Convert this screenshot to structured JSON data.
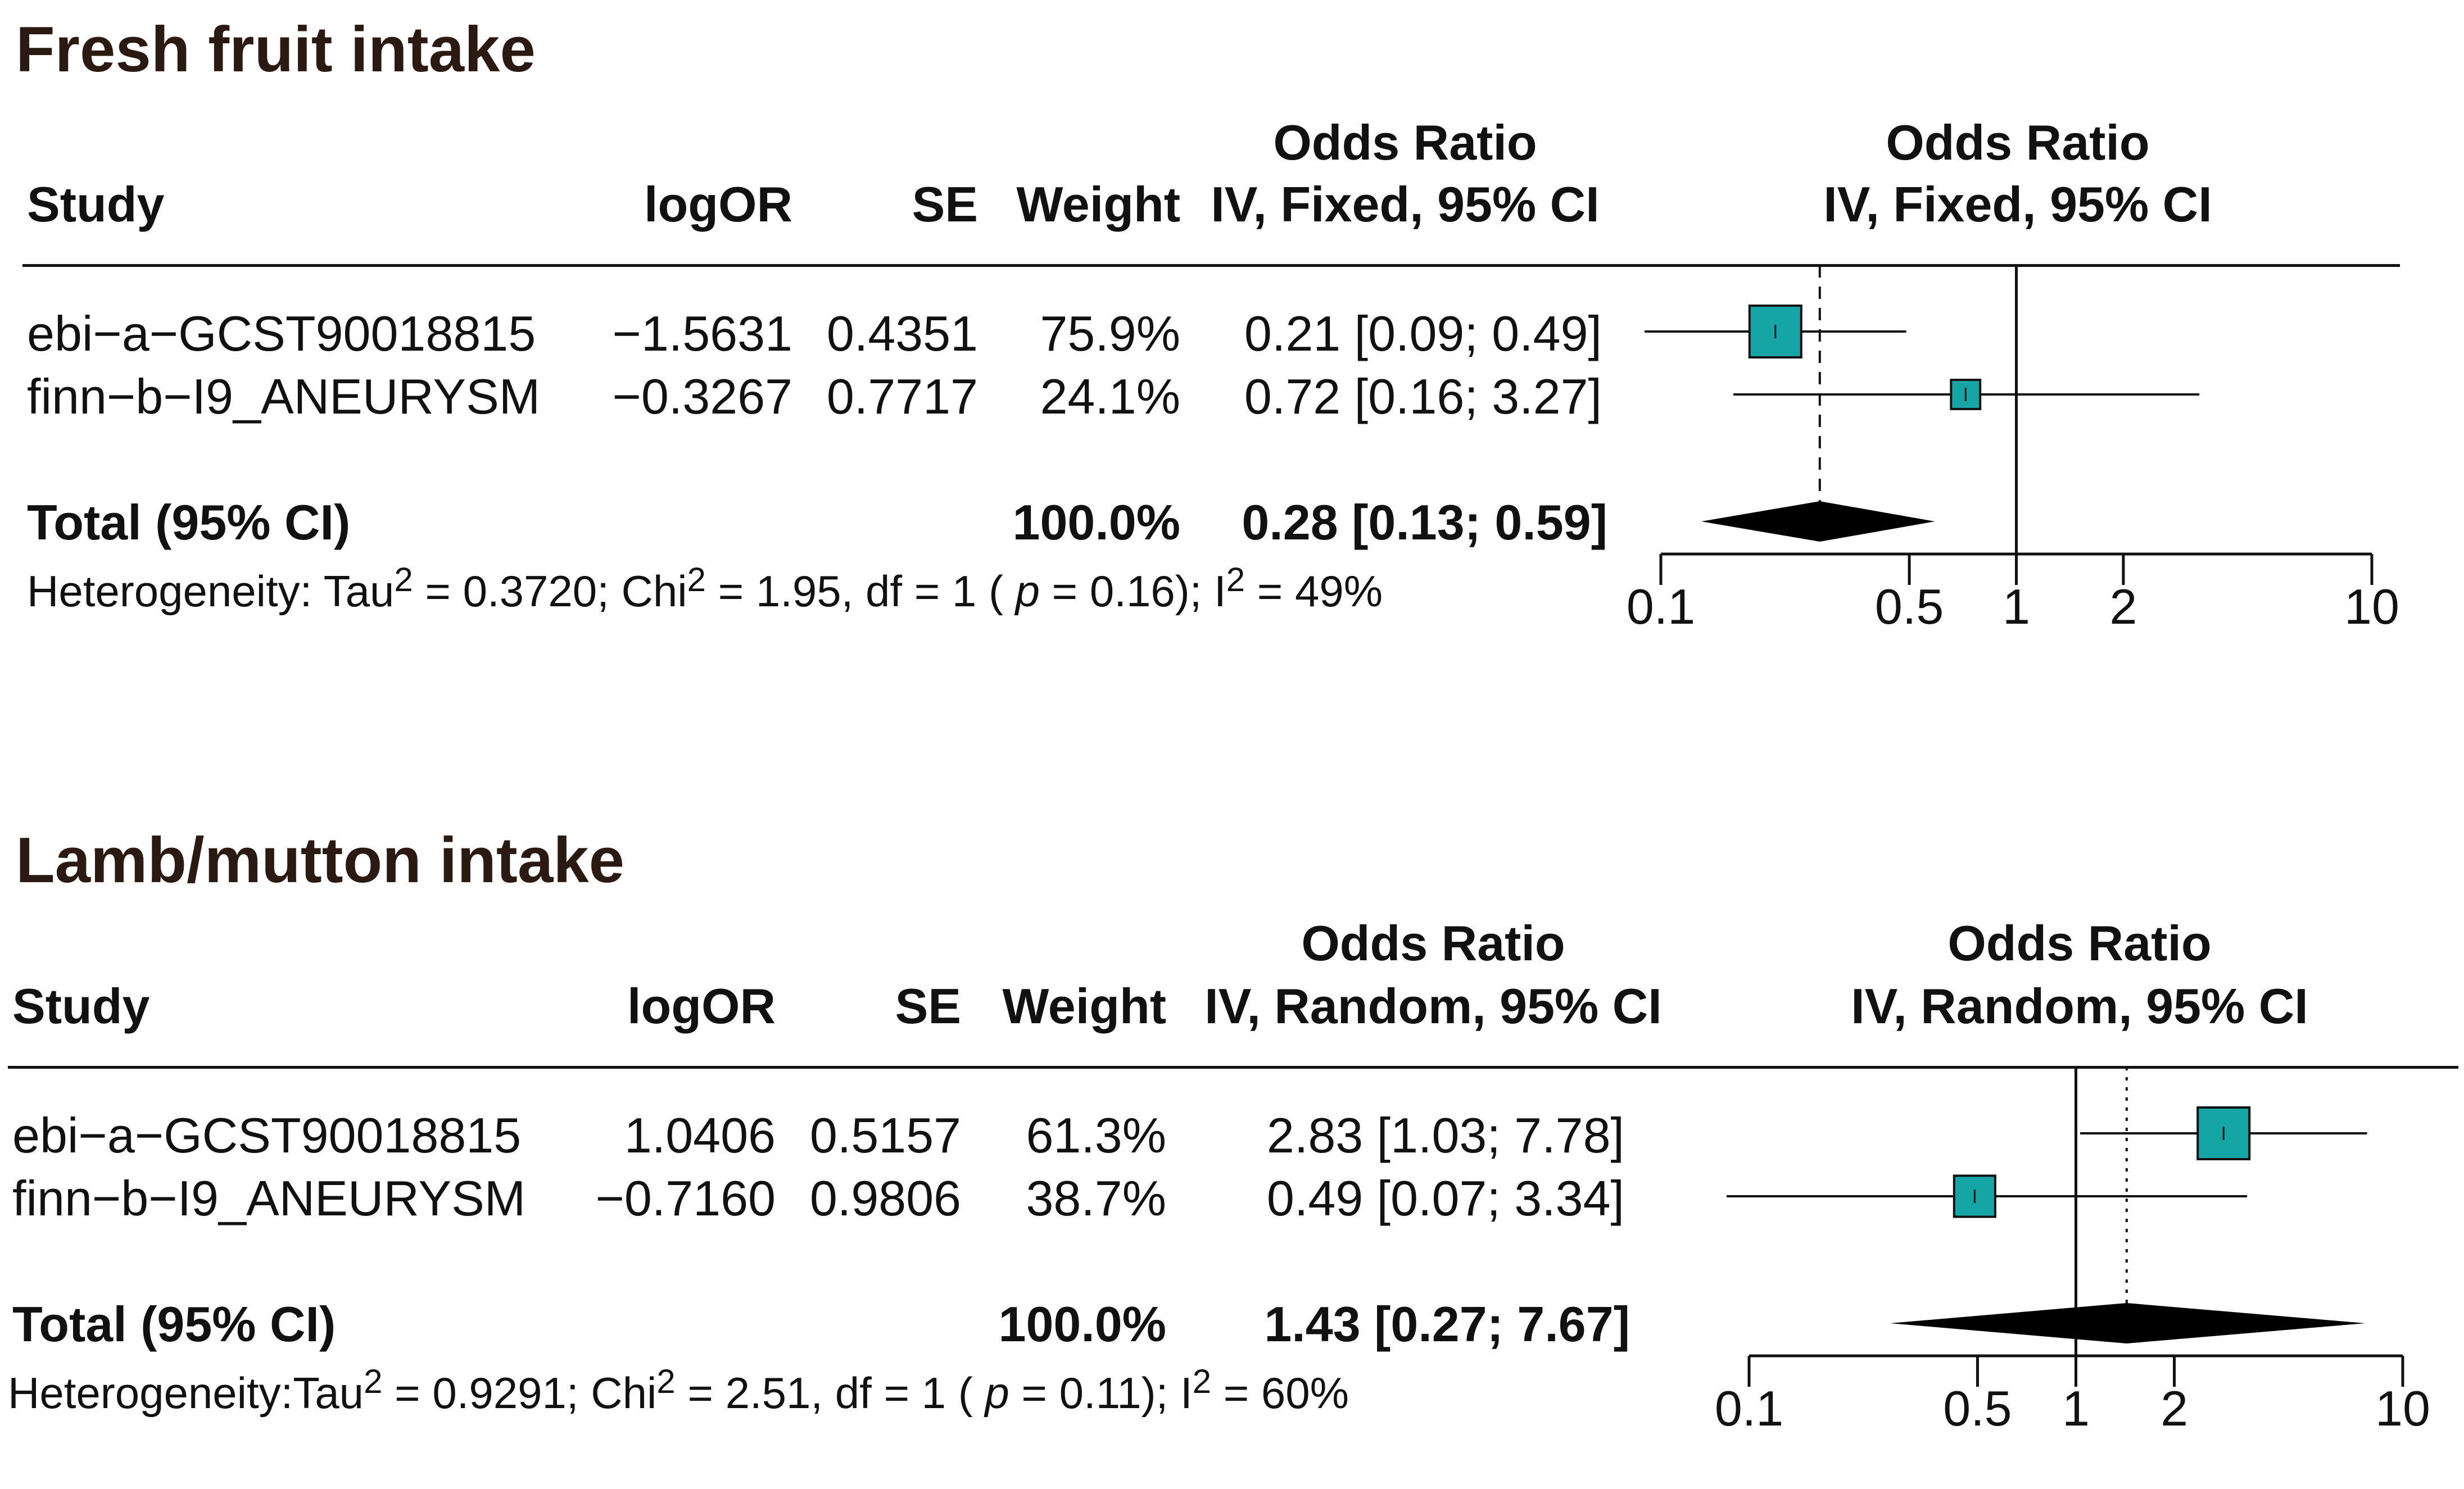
{
  "chart_data": [
    {
      "type": "forest",
      "title": "Fresh fruit intake",
      "columns": {
        "study": "Study",
        "logor": "logOR",
        "se": "SE",
        "weight": "Weight",
        "or_header_line1": "Odds Ratio",
        "or_header_line2": "IV, Fixed, 95% CI",
        "plot_header_line1": "Odds Ratio",
        "plot_header_line2": "IV, Fixed, 95% CI"
      },
      "studies": [
        {
          "name": "ebi−a−GCST90018815",
          "logor": "−1.5631",
          "se": "0.4351",
          "weight": "75.9%",
          "ci_text": "0.21 [0.09; 0.49]",
          "or": 0.21,
          "lower": 0.09,
          "upper": 0.49,
          "weight_value": 75.9
        },
        {
          "name": "finn−b−I9_ANEURYSM",
          "logor": "−0.3267",
          "se": "0.7717",
          "weight": "24.1%",
          "ci_text": "0.72 [0.16; 3.27]",
          "or": 0.72,
          "lower": 0.16,
          "upper": 3.27,
          "weight_value": 24.1
        }
      ],
      "total": {
        "label": "Total (95% CI)",
        "weight": "100.0%",
        "ci_text": "0.28 [0.13; 0.59]",
        "or": 0.28,
        "lower": 0.13,
        "upper": 0.59
      },
      "heterogeneity": {
        "prefix": "Heterogeneity: Tau",
        "tau2": " = 0.3720; Chi",
        "chi2": " = 1.95, df = 1 ( ",
        "p_label": "p",
        "p_value": " = 0.16); I",
        "i2": " = 49%",
        "sup": "2"
      },
      "x_scale": "log",
      "x_ticks": [
        0.1,
        0.5,
        1,
        2,
        10
      ],
      "x_tick_labels": [
        "0.1",
        "0.5",
        "1",
        "2",
        "10"
      ],
      "xlim": [
        0.1,
        10
      ],
      "pooled_line": "dashed"
    },
    {
      "type": "forest",
      "title": "Lamb/mutton intake",
      "columns": {
        "study": "Study",
        "logor": "logOR",
        "se": "SE",
        "weight": "Weight",
        "or_header_line1": "Odds Ratio",
        "or_header_line2": "IV, Random, 95% CI",
        "plot_header_line1": "Odds Ratio",
        "plot_header_line2": "IV, Random, 95% CI"
      },
      "studies": [
        {
          "name": "ebi−a−GCST90018815",
          "logor": "1.0406",
          "se": "0.5157",
          "weight": "61.3%",
          "ci_text": "2.83 [1.03; 7.78]",
          "or": 2.83,
          "lower": 1.03,
          "upper": 7.78,
          "weight_value": 61.3
        },
        {
          "name": "finn−b−I9_ANEURYSM",
          "logor": "−0.7160",
          "se": "0.9806",
          "weight": "38.7%",
          "ci_text": "0.49 [0.07; 3.34]",
          "or": 0.49,
          "lower": 0.07,
          "upper": 3.34,
          "weight_value": 38.7
        }
      ],
      "total": {
        "label": "Total (95% CI)",
        "weight": "100.0%",
        "ci_text": "1.43 [0.27; 7.67]",
        "or": 1.43,
        "lower": 0.27,
        "upper": 7.67
      },
      "heterogeneity": {
        "prefix": "Heterogeneity:Tau",
        "tau2": " = 0.9291; Chi",
        "chi2": " = 2.51, df = 1 ( ",
        "p_label": "p",
        "p_value": " = 0.11); I",
        "i2": " = 60%",
        "sup": "2"
      },
      "x_scale": "log",
      "x_ticks": [
        0.1,
        0.5,
        1,
        2,
        10
      ],
      "x_tick_labels": [
        "0.1",
        "0.5",
        "1",
        "2",
        "10"
      ],
      "xlim": [
        0.1,
        10
      ],
      "pooled_line": "dotted"
    }
  ],
  "colors": {
    "box": "#16a5a5",
    "diamond": "#000000",
    "text": "#111111",
    "title": "#2b1a12"
  }
}
